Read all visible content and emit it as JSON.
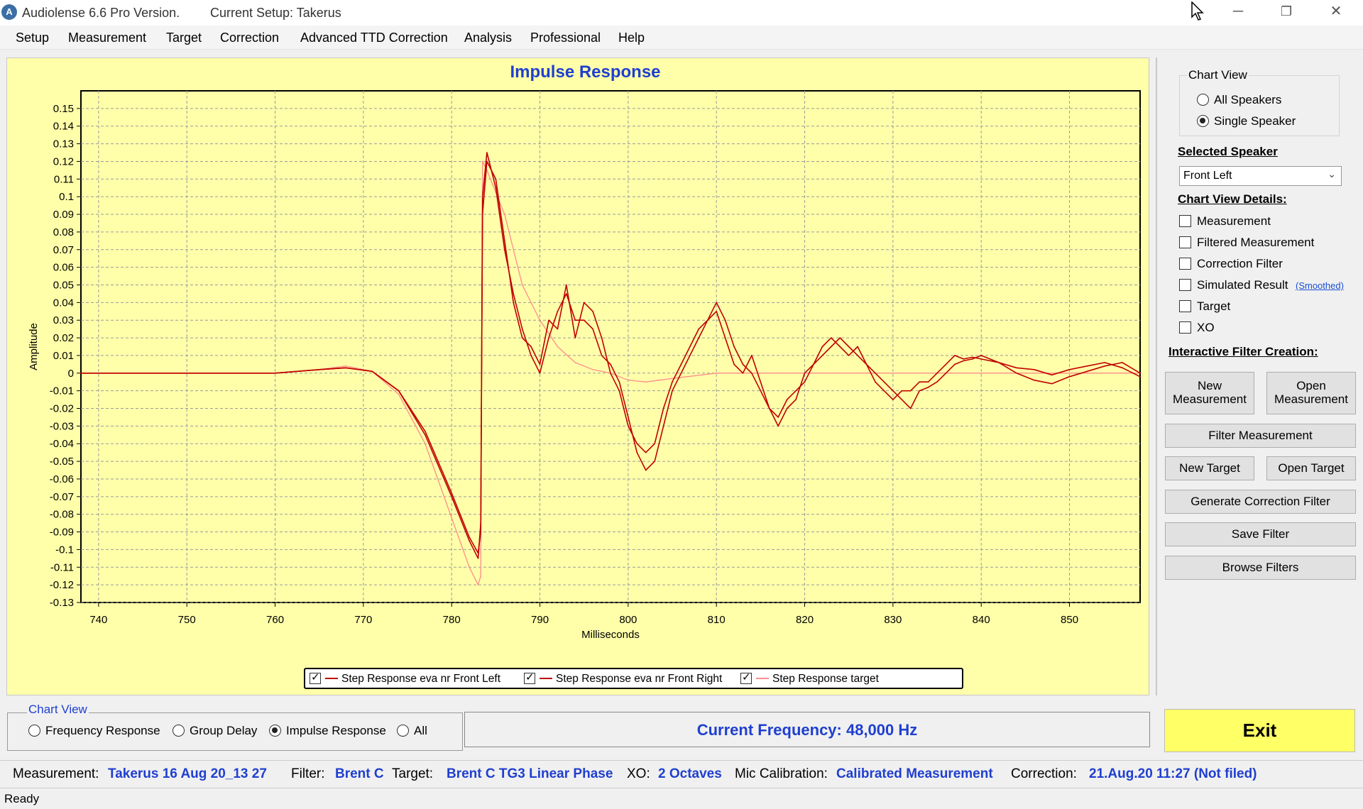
{
  "titlebar": {
    "app_title": "Audiolense 6.6 Pro Version.",
    "setup_label": "Current Setup: Takerus",
    "minimize": "─",
    "maximize": "❐",
    "close": "✕"
  },
  "menu": [
    "Setup",
    "Measurement",
    "Target",
    "Correction",
    "Advanced TTD Correction",
    "Analysis",
    "Professional",
    "Help"
  ],
  "chart_data": {
    "type": "line",
    "title": "Impulse Response",
    "xlabel": "Milliseconds",
    "ylabel": "Amplitude",
    "xlim": [
      738,
      858
    ],
    "ylim": [
      -0.13,
      0.16
    ],
    "xticks": [
      740,
      750,
      760,
      770,
      780,
      790,
      800,
      810,
      820,
      830,
      840,
      850
    ],
    "yticks": [
      "0.15",
      "0.14",
      "0.13",
      "0.12",
      "0.11",
      "0.1",
      "0.09",
      "0.08",
      "0.07",
      "0.06",
      "0.05",
      "0.04",
      "0.03",
      "0.02",
      "0.01",
      "0",
      "-0.01",
      "-0.02",
      "-0.03",
      "-0.04",
      "-0.05",
      "-0.06",
      "-0.07",
      "-0.08",
      "-0.09",
      "-0.1",
      "-0.11",
      "-0.12",
      "-0.13"
    ],
    "grid": true,
    "series": [
      {
        "name": "Step Response eva nr Front Left",
        "color": "#c00000",
        "x": [
          738,
          760,
          765,
          768,
          771,
          774,
          777,
          780,
          782,
          783,
          783.3,
          783.5,
          784,
          785,
          786,
          787,
          788,
          789,
          790,
          791,
          792,
          793,
          794,
          795,
          796,
          797,
          798,
          799,
          800,
          801,
          802,
          803,
          804,
          805,
          806,
          807,
          808,
          809,
          810,
          811,
          812,
          813,
          814,
          815,
          816,
          817,
          818,
          819,
          820,
          821,
          822,
          823,
          824,
          825,
          826,
          827,
          828,
          829,
          830,
          831,
          832,
          833,
          834,
          835,
          836,
          837,
          838,
          839,
          840,
          842,
          844,
          846,
          848,
          850,
          852,
          854,
          856,
          858
        ],
        "y": [
          0,
          0,
          0.002,
          0.003,
          0.001,
          -0.01,
          -0.035,
          -0.07,
          -0.095,
          -0.105,
          -0.085,
          0.09,
          0.12,
          0.11,
          0.075,
          0.04,
          0.02,
          0.015,
          0.005,
          0.03,
          0.025,
          0.05,
          0.02,
          0.04,
          0.035,
          0.02,
          0.0,
          -0.01,
          -0.03,
          -0.04,
          -0.045,
          -0.04,
          -0.02,
          -0.005,
          0.005,
          0.015,
          0.025,
          0.03,
          0.035,
          0.02,
          0.005,
          0.0,
          0.01,
          -0.005,
          -0.02,
          -0.025,
          -0.015,
          -0.01,
          -0.005,
          0.005,
          0.015,
          0.02,
          0.015,
          0.01,
          0.015,
          0.005,
          -0.005,
          -0.01,
          -0.015,
          -0.01,
          -0.01,
          -0.005,
          -0.005,
          0.0,
          0.005,
          0.01,
          0.008,
          0.009,
          0.008,
          0.006,
          0.003,
          0.002,
          -0.001,
          0.002,
          0.004,
          0.006,
          0.003,
          -0.002
        ]
      },
      {
        "name": "Step Response eva nr Front Right",
        "color": "#c00000",
        "x": [
          738,
          760,
          765,
          768,
          771,
          774,
          777,
          780,
          782,
          783,
          783.3,
          783.5,
          784,
          785,
          786,
          787,
          788,
          789,
          790,
          791,
          792,
          793,
          794,
          795,
          796,
          797,
          798,
          799,
          800,
          801,
          802,
          803,
          804,
          805,
          806,
          807,
          808,
          809,
          810,
          811,
          812,
          813,
          814,
          815,
          816,
          817,
          818,
          819,
          820,
          821,
          822,
          823,
          824,
          825,
          826,
          827,
          828,
          829,
          830,
          831,
          832,
          833,
          834,
          835,
          836,
          837,
          838,
          839,
          840,
          842,
          844,
          846,
          848,
          850,
          852,
          854,
          856,
          858
        ],
        "y": [
          0,
          0,
          0.002,
          0.003,
          0.001,
          -0.01,
          -0.033,
          -0.068,
          -0.093,
          -0.102,
          -0.09,
          0.1,
          0.125,
          0.105,
          0.07,
          0.045,
          0.025,
          0.01,
          0.0,
          0.02,
          0.035,
          0.045,
          0.03,
          0.03,
          0.025,
          0.01,
          0.005,
          -0.005,
          -0.025,
          -0.045,
          -0.055,
          -0.05,
          -0.03,
          -0.01,
          0.0,
          0.01,
          0.02,
          0.03,
          0.04,
          0.03,
          0.015,
          0.005,
          0.0,
          -0.01,
          -0.02,
          -0.03,
          -0.02,
          -0.015,
          0.0,
          0.005,
          0.01,
          0.015,
          0.02,
          0.015,
          0.01,
          0.005,
          0.0,
          -0.005,
          -0.01,
          -0.015,
          -0.02,
          -0.01,
          -0.008,
          -0.005,
          0.0,
          0.005,
          0.007,
          0.008,
          0.01,
          0.006,
          0.0,
          -0.004,
          -0.006,
          -0.002,
          0.001,
          0.004,
          0.006,
          0.0
        ]
      },
      {
        "name": "Step Response target",
        "color": "#ff8c8c",
        "x": [
          738,
          760,
          765,
          768,
          771,
          774,
          777,
          780,
          782,
          783,
          783.3,
          783.5,
          784,
          786,
          788,
          790,
          792,
          794,
          796,
          798,
          800,
          802,
          805,
          810,
          815,
          820,
          825,
          830,
          840,
          858
        ],
        "y": [
          0,
          0,
          0.002,
          0.004,
          0.001,
          -0.012,
          -0.04,
          -0.082,
          -0.11,
          -0.12,
          -0.115,
          0.12,
          0.115,
          0.09,
          0.05,
          0.03,
          0.015,
          0.006,
          0.002,
          0.0,
          -0.004,
          -0.005,
          -0.003,
          0.0,
          0.0,
          0.0,
          0.0,
          0.0,
          0.0,
          0.0
        ]
      }
    ],
    "legend": {
      "placement": "bottom-center",
      "entries": [
        {
          "label": "Step Response eva nr Front Left",
          "checked": true
        },
        {
          "label": "Step Response eva nr Front Right",
          "checked": true
        },
        {
          "label": "Step Response target",
          "checked": true
        }
      ]
    }
  },
  "right_panel": {
    "chart_view": {
      "title": "Chart View",
      "options": [
        {
          "label": "All Speakers",
          "checked": false
        },
        {
          "label": "Single Speaker",
          "checked": true
        }
      ]
    },
    "selected_speaker": {
      "heading": "Selected Speaker",
      "value": "Front Left"
    },
    "details": {
      "heading": "Chart View Details:",
      "items": [
        {
          "label": "Measurement",
          "checked": false
        },
        {
          "label": "Filtered Measurement",
          "checked": false
        },
        {
          "label": "Correction Filter",
          "checked": false
        },
        {
          "label": "Simulated Result",
          "checked": false
        },
        {
          "label": "Target",
          "checked": false
        },
        {
          "label": "XO",
          "checked": false
        }
      ],
      "smoothed_link": "(Smoothed)"
    },
    "interactive": {
      "heading": "Interactive Filter Creation:",
      "new_measurement": [
        "New",
        "Measurement"
      ],
      "open_measurement": [
        "Open",
        "Measurement"
      ],
      "filter_measurement": "Filter Measurement",
      "new_target": "New Target",
      "open_target": "Open Target",
      "generate_filter": "Generate Correction Filter",
      "save_filter": "Save Filter",
      "browse_filters": "Browse Filters"
    }
  },
  "bottom": {
    "chart_view_title": "Chart View",
    "options": [
      {
        "label": "Frequency Response",
        "checked": false
      },
      {
        "label": "Group Delay",
        "checked": false
      },
      {
        "label": "Impulse Response",
        "checked": true
      },
      {
        "label": "All",
        "checked": false
      }
    ],
    "current_frequency": "Current Frequency: 48,000 Hz",
    "exit": "Exit"
  },
  "info": {
    "measurement_label": "Measurement:",
    "measurement_value": "Takerus 16 Aug 20_13 27",
    "filter_label": "Filter:",
    "filter_value": "Brent C",
    "target_label": "Target:",
    "target_value": "Brent C TG3 Linear Phase",
    "xo_label": "XO:",
    "xo_value": "2 Octaves",
    "mic_label": "Mic Calibration:",
    "mic_value": "Calibrated Measurement",
    "correction_label": "Correction:",
    "correction_value": "21.Aug.20 11:27 (Not filed)"
  },
  "status": "Ready",
  "colors": {
    "plot_bg": "#ffffaa",
    "accent_blue": "#1f3fd0",
    "exit_bg": "#ffff66",
    "series_main": "#c00000",
    "series_target": "#ff8c8c"
  }
}
